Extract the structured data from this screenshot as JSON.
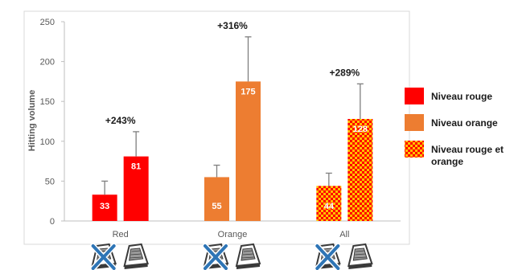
{
  "colors": {
    "red": "#ff0000",
    "orange": "#ed7d31",
    "check_light": "#ffc000",
    "axis": "#bfbfbf",
    "error_bar": "#7f7f7f",
    "panel_border": "#d9d9d9"
  },
  "chart_data": {
    "type": "bar",
    "ylabel": "Hitting volume",
    "ylim": [
      0,
      250
    ],
    "yticks": [
      0,
      50,
      100,
      150,
      200,
      250
    ],
    "categories": [
      "Red",
      "Orange",
      "All"
    ],
    "groups": [
      {
        "category": "Red",
        "fill": "red",
        "bars": [
          {
            "value": 33,
            "label": "33",
            "error_high": 50
          },
          {
            "value": 81,
            "label": "81",
            "error_high": 112
          }
        ],
        "change_label": "+243%"
      },
      {
        "category": "Orange",
        "fill": "orange",
        "bars": [
          {
            "value": 55,
            "label": "55",
            "error_high": 70
          },
          {
            "value": 175,
            "label": "175",
            "error_high": 231
          }
        ],
        "change_label": "+316%"
      },
      {
        "category": "All",
        "fill": "checker",
        "bars": [
          {
            "value": 44,
            "label": "44",
            "error_high": 60
          },
          {
            "value": 128,
            "label": "128",
            "error_high": 172
          }
        ],
        "change_label": "+289%"
      }
    ],
    "legend": {
      "placement": "right",
      "entries": [
        {
          "label": "Niveau rouge",
          "fill": "red"
        },
        {
          "label": "Niveau orange",
          "fill": "orange"
        },
        {
          "label": "Niveau rouge et orange",
          "fill": "checker"
        }
      ]
    }
  },
  "icons": [
    "crossed-out-device-icon",
    "device-icon"
  ]
}
